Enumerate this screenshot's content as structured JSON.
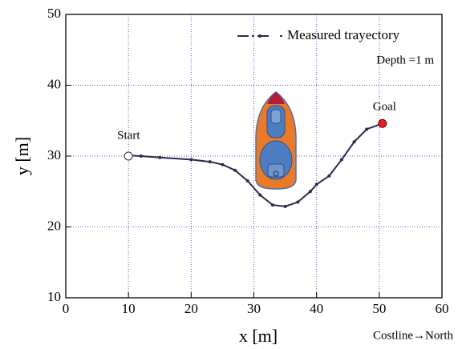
{
  "chart_data": {
    "type": "line",
    "x_label": "x [m]",
    "y_label": "y [m]",
    "x": [
      10,
      12,
      15,
      20,
      23,
      25,
      27,
      29,
      31,
      33,
      35,
      37,
      39,
      40,
      42,
      44,
      46,
      48,
      50.5
    ],
    "series": [
      {
        "name": "Measured trayectory",
        "color": "#2b2b4d",
        "values": [
          30.1,
          30.0,
          29.8,
          29.5,
          29.2,
          28.8,
          28.0,
          26.5,
          24.5,
          23.1,
          22.9,
          23.5,
          25.0,
          26.0,
          27.2,
          29.5,
          32.0,
          33.8,
          34.6
        ]
      }
    ],
    "start": {
      "label": "Start",
      "x": 10,
      "y": 30
    },
    "goal": {
      "label": "Goal",
      "x": 50.5,
      "y": 34.6,
      "color": "#e8202a"
    },
    "depth_note": "Depth =1 m",
    "direction_note": "Costline→North",
    "xlim": [
      0,
      60
    ],
    "xticks": [
      0,
      10,
      20,
      30,
      40,
      50,
      60
    ],
    "ylim": [
      10,
      50
    ],
    "yticks": [
      10,
      20,
      30,
      40,
      50
    ],
    "grid": true,
    "grid_color": "#5566cc",
    "legend": "upper right"
  }
}
